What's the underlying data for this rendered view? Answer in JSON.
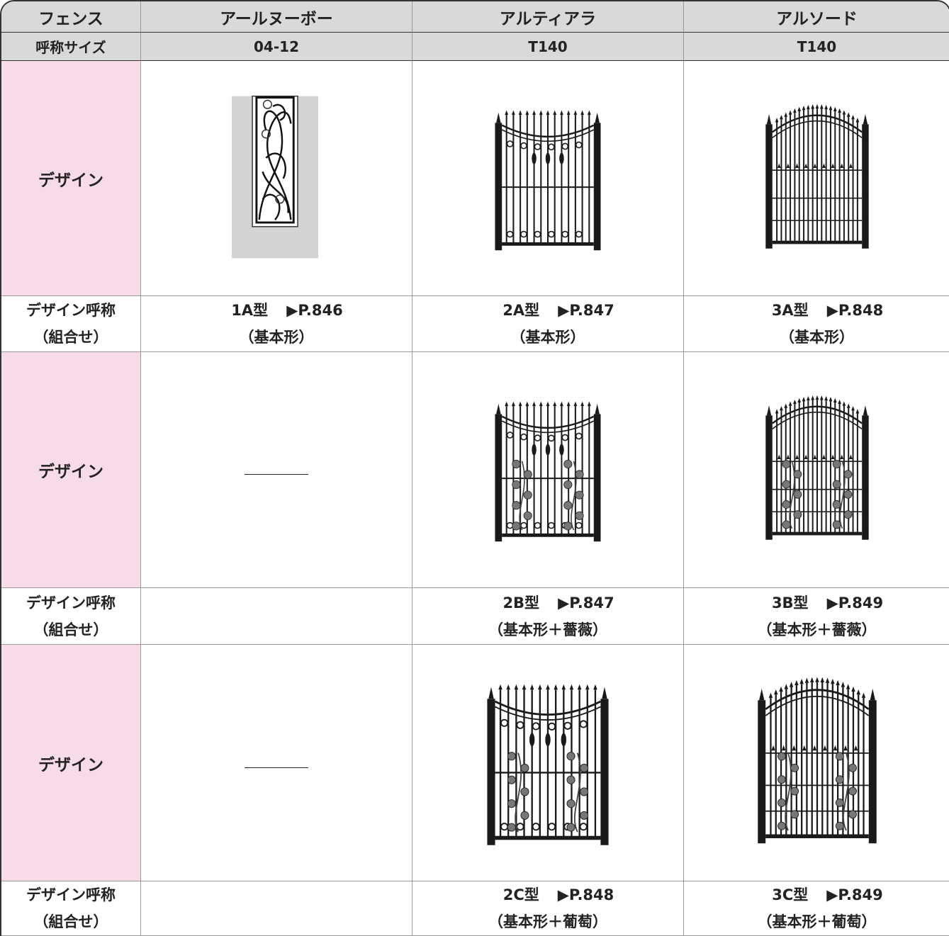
{
  "table": {
    "header": [
      "フェンス",
      "アールヌーボー",
      "アルティアラ",
      "アルソード"
    ],
    "size": {
      "label": "呼称サイズ",
      "values": [
        "04-12",
        "T140",
        "T140"
      ]
    },
    "groups": [
      {
        "design_label": "デザイン",
        "name_label": [
          "デザイン呼称",
          "（組合せ）"
        ],
        "items": [
          {
            "code": "1A型",
            "page": "▶P.846",
            "note": "（基本形）"
          },
          {
            "code": "2A型",
            "page": "▶P.847",
            "note": "（基本形）"
          },
          {
            "code": "3A型",
            "page": "▶P.848",
            "note": "（基本形）"
          }
        ]
      },
      {
        "design_label": "デザイン",
        "name_label": [
          "デザイン呼称",
          "（組合せ）"
        ],
        "items": [
          null,
          {
            "code": "2B型",
            "page": "▶P.847",
            "note": "（基本形＋薔薇）"
          },
          {
            "code": "3B型",
            "page": "▶P.849",
            "note": "（基本形＋薔薇）"
          }
        ]
      },
      {
        "design_label": "デザイン",
        "name_label": [
          "デザイン呼称",
          "（組合せ）"
        ],
        "items": [
          null,
          {
            "code": "2C型",
            "page": "▶P.848",
            "note": "（基本形＋葡萄）"
          },
          {
            "code": "3C型",
            "page": "▶P.849",
            "note": "（基本形＋葡萄）"
          }
        ]
      }
    ]
  }
}
